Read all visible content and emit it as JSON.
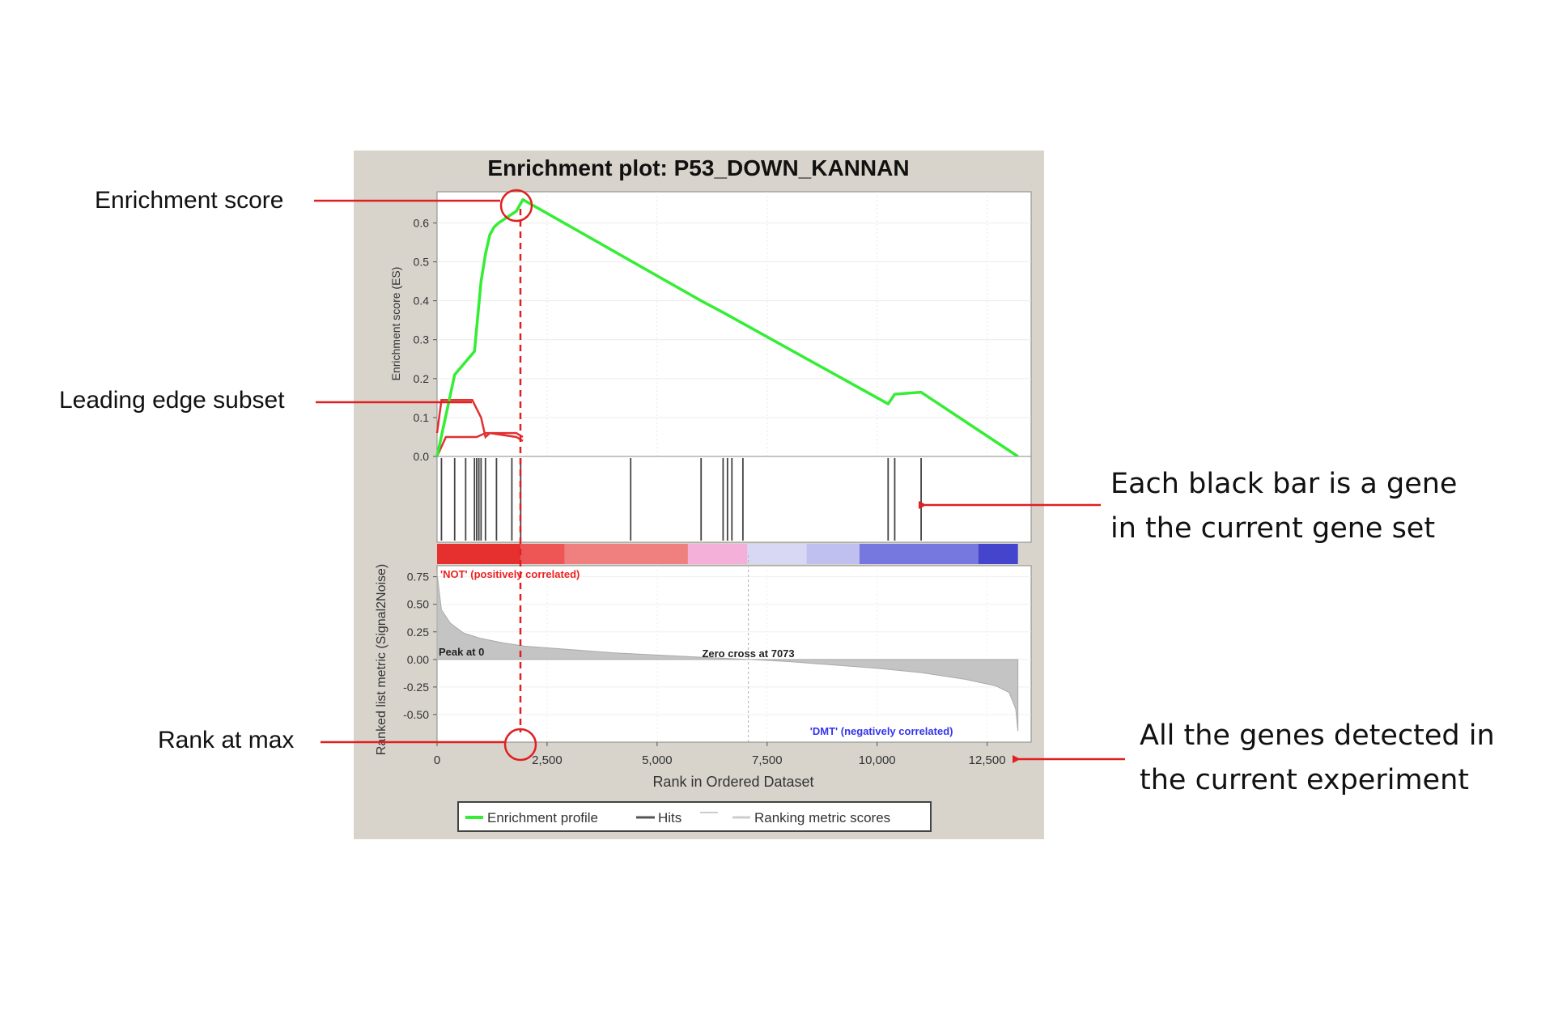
{
  "chart_data": {
    "type": "line",
    "title": "Enrichment plot: P53_DOWN_KANNAN",
    "xlabel": "Rank in Ordered Dataset",
    "ylabel_top": "Enrichment score (ES)",
    "ylabel_bottom": "Ranked list metric (Signal2Noise)",
    "x_ticks": [
      0,
      2500,
      5000,
      7500,
      10000,
      12500
    ],
    "x_tick_labels": [
      "0",
      "2,500",
      "5,000",
      "7,500",
      "10,000",
      "12,500"
    ],
    "xlim": [
      0,
      13500
    ],
    "es_ticks": [
      0.0,
      0.1,
      0.2,
      0.3,
      0.4,
      0.5,
      0.6
    ],
    "es_tick_labels": [
      "0.0",
      "0.1",
      "0.2",
      "0.3",
      "0.4",
      "0.5",
      "0.6"
    ],
    "es_ylim": [
      0.0,
      0.68
    ],
    "metric_ticks": [
      0.75,
      0.5,
      0.25,
      0.0,
      -0.25,
      -0.5
    ],
    "metric_tick_labels": [
      "0.75",
      "0.50",
      "0.25",
      "0.00",
      "-0.25",
      "-0.50"
    ],
    "metric_ylim": [
      -0.75,
      0.85
    ],
    "series": [
      {
        "name": "Enrichment profile",
        "color": "#33ee33",
        "x": [
          0,
          400,
          850,
          1000,
          1100,
          1200,
          1250,
          1300,
          1400,
          1800,
          1950,
          6000,
          6500,
          10250,
          10400,
          11000,
          13200
        ],
        "y": [
          0.0,
          0.21,
          0.27,
          0.45,
          0.52,
          0.57,
          0.58,
          0.59,
          0.6,
          0.63,
          0.66,
          0.4,
          0.37,
          0.135,
          0.16,
          0.165,
          0.0
        ]
      }
    ],
    "leading_edge": {
      "color": "#e03030",
      "x": [
        0,
        100,
        800,
        1000,
        1100,
        1200,
        1800,
        1950
      ],
      "y": [
        0.06,
        0.145,
        0.145,
        0.1,
        0.05,
        0.06,
        0.06,
        0.05
      ]
    },
    "leading_edge_floor": {
      "x": [
        0,
        200,
        900,
        1100,
        1200,
        1800,
        1950
      ],
      "y": [
        0.0,
        0.05,
        0.05,
        0.06,
        0.06,
        0.05,
        0.04
      ]
    },
    "hits": [
      100,
      400,
      650,
      850,
      900,
      950,
      1000,
      1100,
      1350,
      1700,
      1900,
      4400,
      6000,
      6500,
      6600,
      6700,
      6950,
      10250,
      10400,
      11000
    ],
    "metric_curve": {
      "x": [
        0,
        100,
        300,
        600,
        1000,
        1500,
        2000,
        3000,
        4000,
        5000,
        6000,
        7073,
        8000,
        9000,
        10000,
        11000,
        12000,
        12700,
        13000,
        13150,
        13200
      ],
      "y": [
        0.78,
        0.45,
        0.33,
        0.24,
        0.19,
        0.15,
        0.12,
        0.09,
        0.06,
        0.04,
        0.02,
        0.0,
        -0.02,
        -0.05,
        -0.08,
        -0.12,
        -0.18,
        -0.24,
        -0.3,
        -0.45,
        -0.65
      ]
    },
    "heatmap_colors": [
      "#e63030",
      "#ee5555",
      "#f08080",
      "#f4b0d8",
      "#d8d8f4",
      "#c0c0f0",
      "#7777e0",
      "#4444cc",
      "#2a1ab8"
    ],
    "heatmap_bounds": [
      0,
      1900,
      2900,
      5700,
      7050,
      8400,
      9600,
      12300,
      13200
    ],
    "labels": {
      "positive": "'NOT' (positively correlated)",
      "negative": "'DMT' (negatively correlated)",
      "zero_cross": "Zero cross at 7073",
      "peak": "Peak at 0"
    },
    "zero_cross_x": 7073,
    "rank_at_max_x": 1950,
    "legend": {
      "placement": "bottom",
      "items": [
        {
          "label": "Enrichment profile",
          "color": "#33ee33"
        },
        {
          "label": "Hits",
          "color": "#555555"
        },
        {
          "label": "Ranking metric scores",
          "color": "#cccccc"
        }
      ]
    },
    "grid": true
  },
  "annotations": {
    "enrichment_score": "Enrichment score",
    "leading_edge_subset": "Leading edge subset",
    "rank_at_max": "Rank at max",
    "gene_bar_line1": "Each black bar is a gene",
    "gene_bar_line2": "in the current gene set",
    "genes_detected_line1": "All the genes detected in",
    "genes_detected_line2": "the current experiment"
  },
  "colors": {
    "panel_background": "#d8d4cc",
    "annotation": "#e02020"
  }
}
